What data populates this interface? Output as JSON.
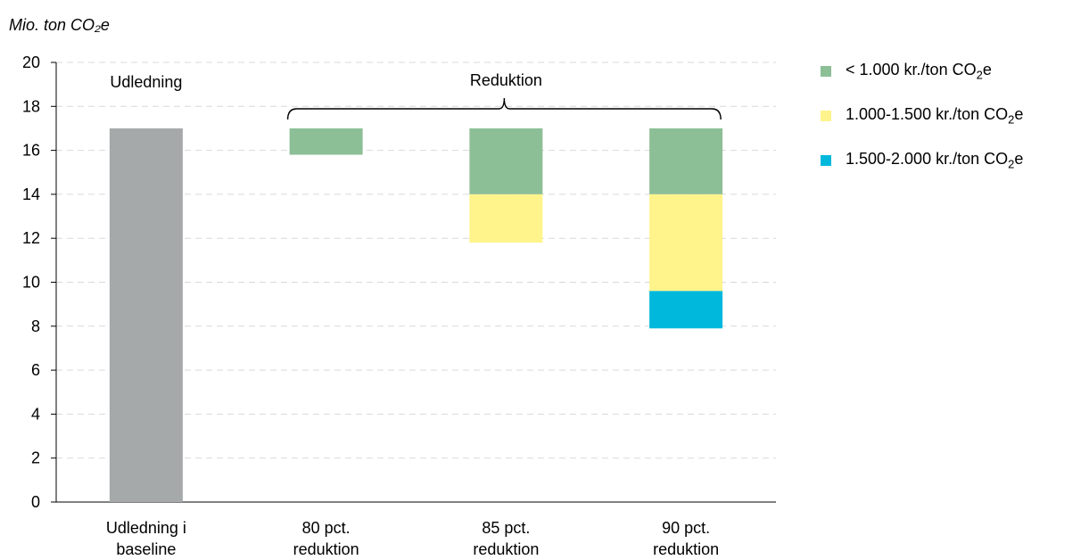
{
  "chart_data": {
    "type": "bar",
    "ylabel": "Mio. ton CO₂e",
    "ylim": [
      0,
      20
    ],
    "yticks": [
      "0",
      "2",
      "4",
      "6",
      "8",
      "10",
      "12",
      "14",
      "16",
      "18",
      "20"
    ],
    "grid": true,
    "categories": [
      [
        "Udledning i",
        "baseline"
      ],
      [
        "80 pct.",
        "reduktion"
      ],
      [
        "85 pct.",
        "reduktion"
      ],
      [
        "90 pct.",
        "reduktion"
      ]
    ],
    "baseline": {
      "name": "Udledning",
      "value": 17.0,
      "color": "#a5a9aa"
    },
    "series": [
      {
        "name": "< 1.000 kr./ton CO₂e",
        "color": "#8dbf97",
        "values": [
          0,
          1.2,
          3.0,
          3.0
        ]
      },
      {
        "name": "1.000-1.500 kr./ton CO₂e",
        "color": "#fff48c",
        "values": [
          0,
          0,
          2.2,
          4.4
        ]
      },
      {
        "name": "1.500-2.000 kr./ton CO₂e",
        "color": "#00b8dc",
        "values": [
          0,
          0,
          0,
          1.7
        ]
      }
    ],
    "annotations": {
      "udledning": "Udledning",
      "reduktion": "Reduktion"
    },
    "legend_position": "right"
  },
  "legend": [
    {
      "pre": "< 1.000 kr./ton CO",
      "sub": "2",
      "post": "e",
      "color": "#8dbf97"
    },
    {
      "pre": "1.000-1.500 kr./ton CO",
      "sub": "2",
      "post": "e",
      "color": "#fff48c"
    },
    {
      "pre": "1.500-2.000 kr./ton CO",
      "sub": "2",
      "post": "e",
      "color": "#00b8dc"
    }
  ]
}
